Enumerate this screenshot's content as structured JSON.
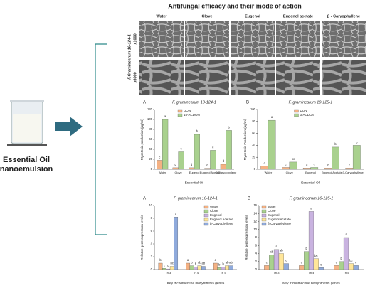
{
  "title": "Antifungal efficacy and their mode of action",
  "essential_oil": "Essential Oil nanoemulsion",
  "sem": {
    "columns": [
      "Water",
      "Clove",
      "Eugenol",
      "Eugenol acetate",
      "β - Caryophyllene"
    ],
    "organism": "F.Graminearum 10-124-1",
    "rows": [
      "x1000",
      "x6000"
    ]
  },
  "chart_data": [
    {
      "type": "bar",
      "panel": "A",
      "title": "F. graminearum 10-124-1",
      "xlabel": "Essential Oil",
      "ylabel": "Mycotoxin production (µg/ml)",
      "categories": [
        "Water",
        "Clove",
        "Eugenol",
        "Eugenol Acetate",
        "β-Caryophyllene"
      ],
      "series": [
        {
          "name": "DON",
          "color": "#f4b183",
          "values": [
            18,
            3,
            3,
            2,
            10
          ],
          "annotations": [
            "c",
            "d",
            "d",
            "d",
            "d"
          ]
        },
        {
          "name": "15-ACDON",
          "color": "#a9d18e",
          "values": [
            100,
            35,
            70,
            38,
            78
          ],
          "annotations": [
            "a",
            "c",
            "b",
            "c",
            "b"
          ]
        }
      ],
      "ylim": [
        0,
        120
      ],
      "yticks": [
        0,
        20,
        40,
        60,
        80,
        100,
        120
      ],
      "legend": "top-center"
    },
    {
      "type": "bar",
      "panel": "B",
      "title": "F. graminearum 10-125-1",
      "xlabel": "Essential Oil",
      "ylabel": "Mycotoxin Production (µg/ml)",
      "categories": [
        "Water",
        "Clove",
        "Eugenol",
        "Eugenol Acetate",
        "β-Caryophyllene"
      ],
      "series": [
        {
          "name": "DON",
          "color": "#f4b183",
          "values": [
            5,
            3,
            2,
            2,
            2
          ],
          "annotations": [
            "c",
            "c",
            "c",
            "c",
            "c"
          ]
        },
        {
          "name": "3-ACDON",
          "color": "#a9d18e",
          "values": [
            82,
            12,
            3,
            37,
            40
          ],
          "annotations": [
            "a",
            "bc",
            "c",
            "b",
            "b"
          ]
        }
      ],
      "ylim": [
        0,
        100
      ],
      "yticks": [
        0,
        20,
        40,
        60,
        80,
        100
      ],
      "legend": "top-center"
    },
    {
      "type": "bar",
      "panel": "A",
      "title": "F. graminearum 10-124-1",
      "xlabel": "Key trichothecene biosynthesis genes",
      "ylabel": "Relative gene expression levels",
      "categories": [
        "Tri 3",
        "Tri 4",
        "Tri 5"
      ],
      "series": [
        {
          "name": "Water",
          "color": "#f4b183",
          "values": [
            1,
            1,
            1
          ],
          "annotations": [
            "b",
            "a",
            "a"
          ]
        },
        {
          "name": "Clove",
          "color": "#a9d18e",
          "values": [
            0.2,
            0.6,
            0.3
          ],
          "annotations": [
            "c",
            "b",
            "b"
          ]
        },
        {
          "name": "Eugenol",
          "color": "#c9b3e0",
          "values": [
            0.1,
            0.4,
            0.4
          ],
          "annotations": [
            "c",
            "b",
            "b"
          ]
        },
        {
          "name": "Eugenol Acetate",
          "color": "#ffe699",
          "values": [
            0.5,
            0.6,
            0.6
          ],
          "annotations": [
            "bc",
            "ab",
            "ab"
          ]
        },
        {
          "name": "β-Caryophyllene",
          "color": "#8faadc",
          "values": [
            8.2,
            0.5,
            0.6
          ],
          "annotations": [
            "a",
            "ab",
            "ab"
          ]
        }
      ],
      "ylim": [
        0,
        10
      ],
      "yticks": [
        0,
        2,
        4,
        6,
        8,
        10
      ],
      "legend": "top-right"
    },
    {
      "type": "bar",
      "panel": "B",
      "title": "F. graminearum 10-125-1",
      "xlabel": "Key trichothecene biosynthesis genes",
      "ylabel": "Relative gene expression levels",
      "categories": [
        "Tri 3",
        "Tri 4",
        "Tri 5"
      ],
      "series": [
        {
          "name": "Water",
          "color": "#f4b183",
          "values": [
            1,
            1,
            1
          ],
          "annotations": [
            "c",
            "c",
            "c"
          ]
        },
        {
          "name": "Clove",
          "color": "#a9d18e",
          "values": [
            3.7,
            4.5,
            2
          ],
          "annotations": [
            "ab",
            "b",
            "b"
          ]
        },
        {
          "name": "Eugenol",
          "color": "#c9b3e0",
          "values": [
            5,
            14.5,
            8
          ],
          "annotations": [
            "a",
            "a",
            "a"
          ]
        },
        {
          "name": "Eugenol Acetate",
          "color": "#ffe699",
          "values": [
            4,
            2.7,
            1.5
          ],
          "annotations": [
            "ab",
            "bc",
            "bc"
          ]
        },
        {
          "name": "β-Caryophyllene",
          "color": "#8faadc",
          "values": [
            1.5,
            0.5,
            1
          ],
          "annotations": [
            "c",
            "c",
            "c"
          ]
        }
      ],
      "ylim": [
        0,
        16
      ],
      "yticks": [
        0,
        2,
        4,
        6,
        8,
        10,
        12,
        14,
        16
      ],
      "legend": "top-left"
    }
  ]
}
